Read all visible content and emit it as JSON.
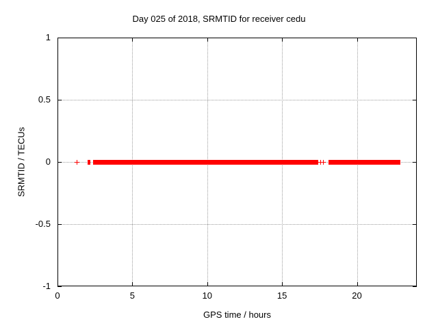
{
  "page": {
    "background": "#ffffff"
  },
  "chart_data": {
    "type": "scatter",
    "title": "Day 025 of 2018, SRMTID for receiver cedu",
    "xlabel": "GPS time / hours",
    "ylabel": "SRMTID / TECUs",
    "xlim": [
      0,
      24
    ],
    "ylim": [
      -1,
      1
    ],
    "xticks": [
      0,
      5,
      10,
      15,
      20
    ],
    "xtick_labels": [
      "0",
      "5",
      "10",
      "15",
      "20"
    ],
    "yticks": [
      -1,
      -0.5,
      0,
      0.5,
      1
    ],
    "ytick_labels": [
      "-1",
      "-0.5",
      "0",
      "0.5",
      "1"
    ],
    "grid": "dotted",
    "legend": "none",
    "marker": "plus",
    "marker_color": "#ff0000",
    "grid_color": "#9c9c9c",
    "axis_color": "#000000",
    "y_value": 0,
    "dense_segments_x_hours": [
      [
        2.0,
        2.2
      ],
      [
        2.38,
        17.42
      ],
      [
        18.1,
        22.9
      ]
    ],
    "isolated_points_x_hours": [
      1.28,
      17.56,
      17.74
    ]
  }
}
